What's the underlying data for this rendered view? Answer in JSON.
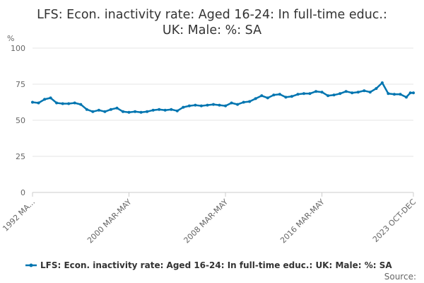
{
  "chart_data": {
    "type": "line",
    "title_line1": "LFS: Econ. inactivity rate: Aged 16-24: In full-time educ.:",
    "title_line2": "UK: Male: %: SA",
    "ylabel": "%",
    "ylim": [
      0,
      100
    ],
    "yticks": [
      "0",
      "25",
      "50",
      "75",
      "100"
    ],
    "xticks": [
      "1992 MA...",
      "2000 MAR-MAY",
      "2008 MAR-MAY",
      "2016 MAR-MAY",
      "2023 OCT-DEC"
    ],
    "legend": "LFS: Econ. inactivity rate: Aged 16-24: In full-time educ.: UK: Male: %: SA",
    "legend_position": "bottom",
    "source_label": "Source:",
    "color": "#0075b0",
    "series": [
      {
        "name": "LFS: Econ. inactivity rate: Aged 16-24: In full-time educ.: UK: Male: %: SA",
        "points": [
          [
            "1992 MAR-MAY",
            62.5
          ],
          [
            "1992 SEP-NOV",
            62.0
          ],
          [
            "1993 MAR-MAY",
            64.5
          ],
          [
            "1993 SEP-NOV",
            65.5
          ],
          [
            "1994 MAR-MAY",
            62.0
          ],
          [
            "1994 SEP-NOV",
            61.5
          ],
          [
            "1995 MAR-MAY",
            61.5
          ],
          [
            "1995 SEP-NOV",
            62.0
          ],
          [
            "1996 MAR-MAY",
            61.0
          ],
          [
            "1996 SEP-NOV",
            57.5
          ],
          [
            "1997 MAR-MAY",
            56.0
          ],
          [
            "1997 SEP-NOV",
            57.0
          ],
          [
            "1998 MAR-MAY",
            56.0
          ],
          [
            "1998 SEP-NOV",
            57.5
          ],
          [
            "1999 MAR-MAY",
            58.5
          ],
          [
            "1999 SEP-NOV",
            56.0
          ],
          [
            "2000 MAR-MAY",
            55.5
          ],
          [
            "2000 SEP-NOV",
            56.0
          ],
          [
            "2001 MAR-MAY",
            55.5
          ],
          [
            "2001 SEP-NOV",
            56.0
          ],
          [
            "2002 MAR-MAY",
            57.0
          ],
          [
            "2002 SEP-NOV",
            57.5
          ],
          [
            "2003 MAR-MAY",
            57.0
          ],
          [
            "2003 SEP-NOV",
            57.5
          ],
          [
            "2004 MAR-MAY",
            56.5
          ],
          [
            "2004 SEP-NOV",
            59.0
          ],
          [
            "2005 MAR-MAY",
            60.0
          ],
          [
            "2005 SEP-NOV",
            60.5
          ],
          [
            "2006 MAR-MAY",
            60.0
          ],
          [
            "2006 SEP-NOV",
            60.5
          ],
          [
            "2007 MAR-MAY",
            61.0
          ],
          [
            "2007 SEP-NOV",
            60.5
          ],
          [
            "2008 MAR-MAY",
            60.0
          ],
          [
            "2008 SEP-NOV",
            62.0
          ],
          [
            "2009 MAR-MAY",
            61.0
          ],
          [
            "2009 SEP-NOV",
            62.5
          ],
          [
            "2010 MAR-MAY",
            63.0
          ],
          [
            "2010 SEP-NOV",
            65.0
          ],
          [
            "2011 MAR-MAY",
            67.0
          ],
          [
            "2011 SEP-NOV",
            65.5
          ],
          [
            "2012 MAR-MAY",
            67.5
          ],
          [
            "2012 SEP-NOV",
            68.0
          ],
          [
            "2013 MAR-MAY",
            66.0
          ],
          [
            "2013 SEP-NOV",
            66.5
          ],
          [
            "2014 MAR-MAY",
            68.0
          ],
          [
            "2014 SEP-NOV",
            68.5
          ],
          [
            "2015 MAR-MAY",
            68.5
          ],
          [
            "2015 SEP-NOV",
            70.0
          ],
          [
            "2016 MAR-MAY",
            69.5
          ],
          [
            "2016 SEP-NOV",
            67.0
          ],
          [
            "2017 MAR-MAY",
            67.5
          ],
          [
            "2017 SEP-NOV",
            68.5
          ],
          [
            "2018 MAR-MAY",
            70.0
          ],
          [
            "2018 SEP-NOV",
            69.0
          ],
          [
            "2019 MAR-MAY",
            69.5
          ],
          [
            "2019 SEP-NOV",
            70.5
          ],
          [
            "2020 MAR-MAY",
            69.5
          ],
          [
            "2020 SEP-NOV",
            72.0
          ],
          [
            "2021 MAR-MAY",
            76.0
          ],
          [
            "2021 SEP-NOV",
            68.5
          ],
          [
            "2022 MAR-MAY",
            68.0
          ],
          [
            "2022 SEP-NOV",
            68.0
          ],
          [
            "2023 MAR-MAY",
            66.0
          ],
          [
            "2023 JUL-SEP",
            69.0
          ],
          [
            "2023 OCT-DEC",
            69.0
          ]
        ]
      }
    ]
  }
}
